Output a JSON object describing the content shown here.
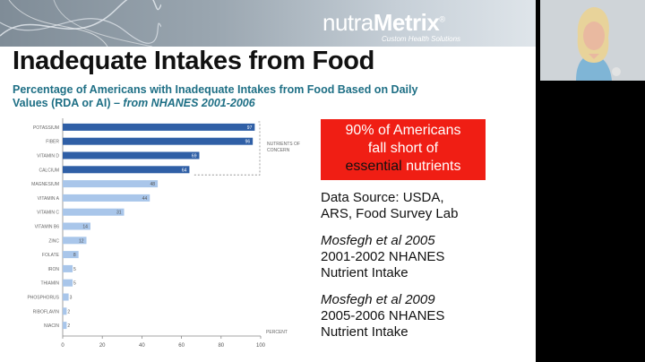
{
  "header": {
    "logo_regular": "nutra",
    "logo_bold": "Metrix",
    "logo_mark": "®",
    "logo_tagline": "Custom Health Solutions"
  },
  "slide": {
    "title": "Inadequate Intakes from Food",
    "subtitle_main": "Percentage of Americans with Inadequate Intakes from Food Based on Daily Values (RDA or AI) – ",
    "subtitle_italic": "from NHANES 2001-2006"
  },
  "chart_data": {
    "type": "bar",
    "orientation": "horizontal",
    "categories": [
      "POTASSIUM",
      "FIBER",
      "VITAMIN D",
      "CALCIUM",
      "MAGNESIUM",
      "VITAMIN A",
      "VITAMIN C",
      "VITAMIN B6",
      "ZINC",
      "FOLATE",
      "IRON",
      "THIAMIN",
      "PHOSPHORUS",
      "RIBOFLAVIN",
      "NIACIN"
    ],
    "values": [
      97,
      96,
      69,
      64,
      48,
      44,
      31,
      14,
      12,
      8,
      5,
      5,
      3,
      2,
      2
    ],
    "highlight_count": 4,
    "highlight_color": "#2f5fa6",
    "base_color": "#a9c6ea",
    "xlim": [
      0,
      100
    ],
    "xticks": [
      "0",
      "20",
      "40",
      "60",
      "80",
      "100"
    ],
    "xlabel": "PERCENT",
    "annotation": "NUTRIENTS OF CONCERN"
  },
  "callout": {
    "line1": "90% of Americans",
    "line2": "fall short of",
    "line3_highlight": "essential",
    "line3_rest": " nutrients",
    "bg_color": "#f01e14"
  },
  "sources": [
    {
      "italic": "",
      "lines": [
        "Data Source: USDA,",
        "ARS, Food Survey Lab"
      ]
    },
    {
      "italic": "Mosfegh et al 2005",
      "lines": [
        "2001-2002 NHANES",
        "Nutrient Intake"
      ]
    },
    {
      "italic": "Mosfegh et al 2009",
      "lines": [
        "2005-2006 NHANES",
        "Nutrient Intake"
      ]
    }
  ]
}
